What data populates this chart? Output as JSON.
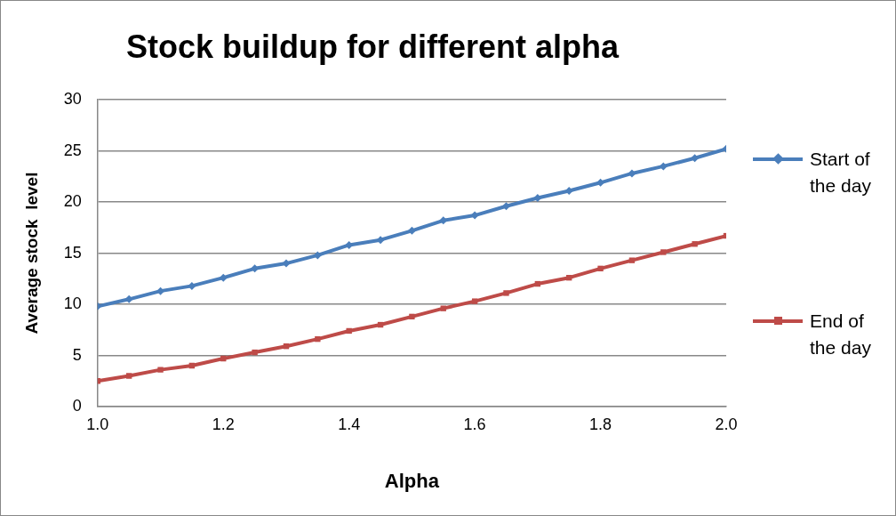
{
  "chart_data": {
    "type": "line",
    "title": "Stock buildup for different alpha",
    "xlabel": "Alpha",
    "ylabel": "Average stock  level",
    "x": [
      1.0,
      1.05,
      1.1,
      1.15,
      1.2,
      1.25,
      1.3,
      1.35,
      1.4,
      1.45,
      1.5,
      1.55,
      1.6,
      1.65,
      1.7,
      1.75,
      1.8,
      1.85,
      1.9,
      1.95,
      2.0
    ],
    "series": [
      {
        "name": "Start of the day",
        "color": "#4a7ebb",
        "marker": "diamond",
        "values": [
          9.8,
          10.5,
          11.3,
          11.8,
          12.6,
          13.5,
          14.0,
          14.8,
          15.8,
          16.3,
          17.2,
          18.2,
          18.7,
          19.6,
          20.4,
          21.1,
          21.9,
          22.8,
          23.5,
          24.3,
          25.2
        ]
      },
      {
        "name": "End of the day",
        "color": "#be4b48",
        "marker": "square",
        "values": [
          2.5,
          3.0,
          3.6,
          4.0,
          4.7,
          5.3,
          5.9,
          6.6,
          7.4,
          8.0,
          8.8,
          9.6,
          10.3,
          11.1,
          12.0,
          12.6,
          13.5,
          14.3,
          15.1,
          15.9,
          16.7
        ]
      }
    ],
    "xlim": [
      1.0,
      2.0
    ],
    "xticks": [
      {
        "value": 1.0,
        "label": "1.0"
      },
      {
        "value": 1.2,
        "label": "1.2"
      },
      {
        "value": 1.4,
        "label": "1.4"
      },
      {
        "value": 1.6,
        "label": "1.6"
      },
      {
        "value": 1.8,
        "label": "1.8"
      },
      {
        "value": 2.0,
        "label": "2.0"
      }
    ],
    "ylim": [
      0,
      30
    ],
    "yticks": [
      0,
      5,
      10,
      15,
      20,
      25,
      30
    ],
    "grid": "y",
    "legend": "right",
    "line_style": "solid"
  }
}
